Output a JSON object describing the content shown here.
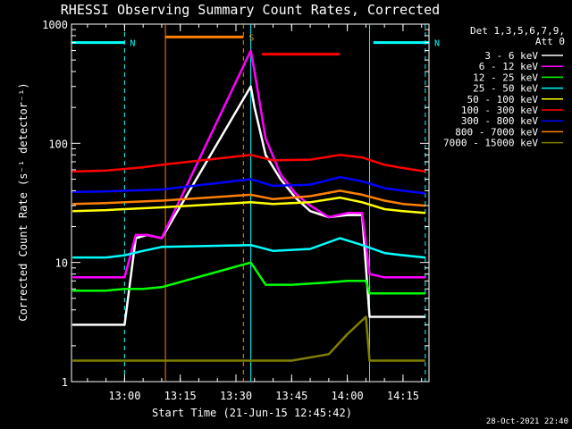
{
  "chart_data": {
    "type": "line",
    "title": "RHESSI Observing Summary Count Rates, Corrected",
    "xlabel": "Start Time (21-Jun-15 12:45:42)",
    "ylabel": "Corrected Count Rate (s⁻¹ detector⁻¹)",
    "y_scale": "log",
    "ylim": [
      1,
      1000
    ],
    "xlim": [
      "12:45:42",
      "14:22:00"
    ],
    "x_ticks": [
      "13:00",
      "13:15",
      "13:30",
      "13:45",
      "14:00",
      "14:15"
    ],
    "y_ticks": [
      "1",
      "10",
      "100",
      "1000"
    ],
    "grid": false,
    "legend_position": "right",
    "legend_header": [
      "Det 1,3,5,6,7,9,",
      "Att 0"
    ],
    "timestamp": "28-Oct-2021 22:40",
    "flags": [
      {
        "label": "N",
        "color": "#00ffff",
        "level": 700,
        "segments": [
          [
            "12:45:42",
            "13:00"
          ],
          [
            "14:07",
            "14:22"
          ]
        ]
      },
      {
        "label": "S",
        "color": "#ff8000",
        "level": 780,
        "segments": [
          [
            "13:11",
            "13:32"
          ]
        ]
      },
      {
        "label": "",
        "color": "#ff0000",
        "level": 560,
        "segments": [
          [
            "13:37",
            "13:58"
          ]
        ]
      }
    ],
    "boundaries": [
      {
        "time": "13:00",
        "color": "#00ffff",
        "style": "dashed"
      },
      {
        "time": "13:11",
        "color": "#ff8000",
        "style": "solid"
      },
      {
        "time": "13:32",
        "color": "#ff8000",
        "style": "dashed"
      },
      {
        "time": "13:34",
        "color": "#00ffff",
        "style": "solid"
      },
      {
        "time": "14:06",
        "color": "#00ffff",
        "style": "solid"
      },
      {
        "time": "14:21",
        "color": "#00ffff",
        "style": "dashed"
      }
    ],
    "series": [
      {
        "name": "3 - 6 keV",
        "color": "#ffffff",
        "x": [
          "12:46",
          "12:52",
          "12:58",
          "13:00",
          "13:03",
          "13:06",
          "13:10",
          "13:34",
          "13:35",
          "13:38",
          "13:42",
          "13:46",
          "13:50",
          "13:55",
          "14:00",
          "14:04",
          "14:06",
          "14:10",
          "14:15",
          "14:21"
        ],
        "y": [
          3,
          3,
          3,
          3,
          16,
          17,
          16,
          300,
          200,
          80,
          50,
          35,
          27,
          24,
          25,
          25,
          3.5,
          3.5,
          3.5,
          3.5
        ]
      },
      {
        "name": "6 - 12 keV",
        "color": "#ff00ff",
        "x": [
          "12:46",
          "12:52",
          "12:58",
          "13:00",
          "13:03",
          "13:06",
          "13:10",
          "13:34",
          "13:35",
          "13:38",
          "13:42",
          "13:46",
          "13:50",
          "13:55",
          "14:00",
          "14:04",
          "14:06",
          "14:10",
          "14:15",
          "14:21"
        ],
        "y": [
          7.5,
          7.5,
          7.5,
          7.5,
          17,
          17,
          16,
          600,
          400,
          110,
          55,
          38,
          30,
          24,
          26,
          26,
          8,
          7.5,
          7.5,
          7.5
        ]
      },
      {
        "name": "12 - 25 keV",
        "color": "#00ff00",
        "x": [
          "12:46",
          "12:55",
          "13:00",
          "13:05",
          "13:10",
          "13:34",
          "13:38",
          "13:45",
          "13:55",
          "14:00",
          "14:05",
          "14:06",
          "14:15",
          "14:21"
        ],
        "y": [
          5.8,
          5.8,
          6,
          6,
          6.2,
          10,
          6.5,
          6.5,
          6.8,
          7,
          7,
          5.5,
          5.5,
          5.5
        ]
      },
      {
        "name": "25 - 50 keV",
        "color": "#00ffff",
        "x": [
          "12:46",
          "12:55",
          "13:00",
          "13:05",
          "13:10",
          "13:34",
          "13:40",
          "13:50",
          "13:58",
          "14:04",
          "14:10",
          "14:15",
          "14:21"
        ],
        "y": [
          11,
          11,
          11.5,
          12.5,
          13.5,
          14,
          12.5,
          13,
          16,
          14,
          12,
          11.5,
          11
        ]
      },
      {
        "name": "50 - 100 keV",
        "color": "#ffff00",
        "x": [
          "12:46",
          "12:55",
          "13:00",
          "13:05",
          "13:10",
          "13:34",
          "13:40",
          "13:50",
          "13:58",
          "14:04",
          "14:10",
          "14:15",
          "14:21"
        ],
        "y": [
          27,
          27.5,
          28,
          28.5,
          29,
          32,
          31,
          32,
          35,
          32,
          28,
          27,
          26
        ]
      },
      {
        "name": "100 - 300 keV",
        "color": "#ff0000",
        "x": [
          "12:46",
          "12:55",
          "13:00",
          "13:05",
          "13:10",
          "13:34",
          "13:40",
          "13:50",
          "13:58",
          "14:04",
          "14:10",
          "14:15",
          "14:21"
        ],
        "y": [
          58,
          59,
          61,
          63,
          66,
          80,
          72,
          73,
          80,
          76,
          66,
          62,
          58
        ]
      },
      {
        "name": "300 - 800 keV",
        "color": "#0000ff",
        "x": [
          "12:46",
          "12:55",
          "13:00",
          "13:05",
          "13:10",
          "13:34",
          "13:40",
          "13:50",
          "13:58",
          "14:04",
          "14:10",
          "14:15",
          "14:21"
        ],
        "y": [
          39,
          39.5,
          40,
          40.5,
          41,
          50,
          44,
          45,
          52,
          48,
          42,
          40,
          38
        ]
      },
      {
        "name": "800 - 7000 keV",
        "color": "#ff8000",
        "x": [
          "12:46",
          "12:55",
          "13:00",
          "13:05",
          "13:10",
          "13:34",
          "13:40",
          "13:50",
          "13:58",
          "14:04",
          "14:10",
          "14:15",
          "14:21"
        ],
        "y": [
          31,
          31.5,
          32,
          32.5,
          33,
          37,
          34,
          36,
          40,
          37,
          33,
          31,
          30
        ]
      },
      {
        "name": "7000 - 15000 keV",
        "color": "#808000",
        "x": [
          "12:46",
          "12:55",
          "13:00",
          "13:05",
          "13:10",
          "13:34",
          "13:45",
          "13:55",
          "14:00",
          "14:05",
          "14:06",
          "14:15",
          "14:21"
        ],
        "y": [
          1.5,
          1.5,
          1.5,
          1.5,
          1.5,
          1.5,
          1.5,
          1.7,
          2.5,
          3.5,
          1.5,
          1.5,
          1.5
        ]
      }
    ]
  }
}
